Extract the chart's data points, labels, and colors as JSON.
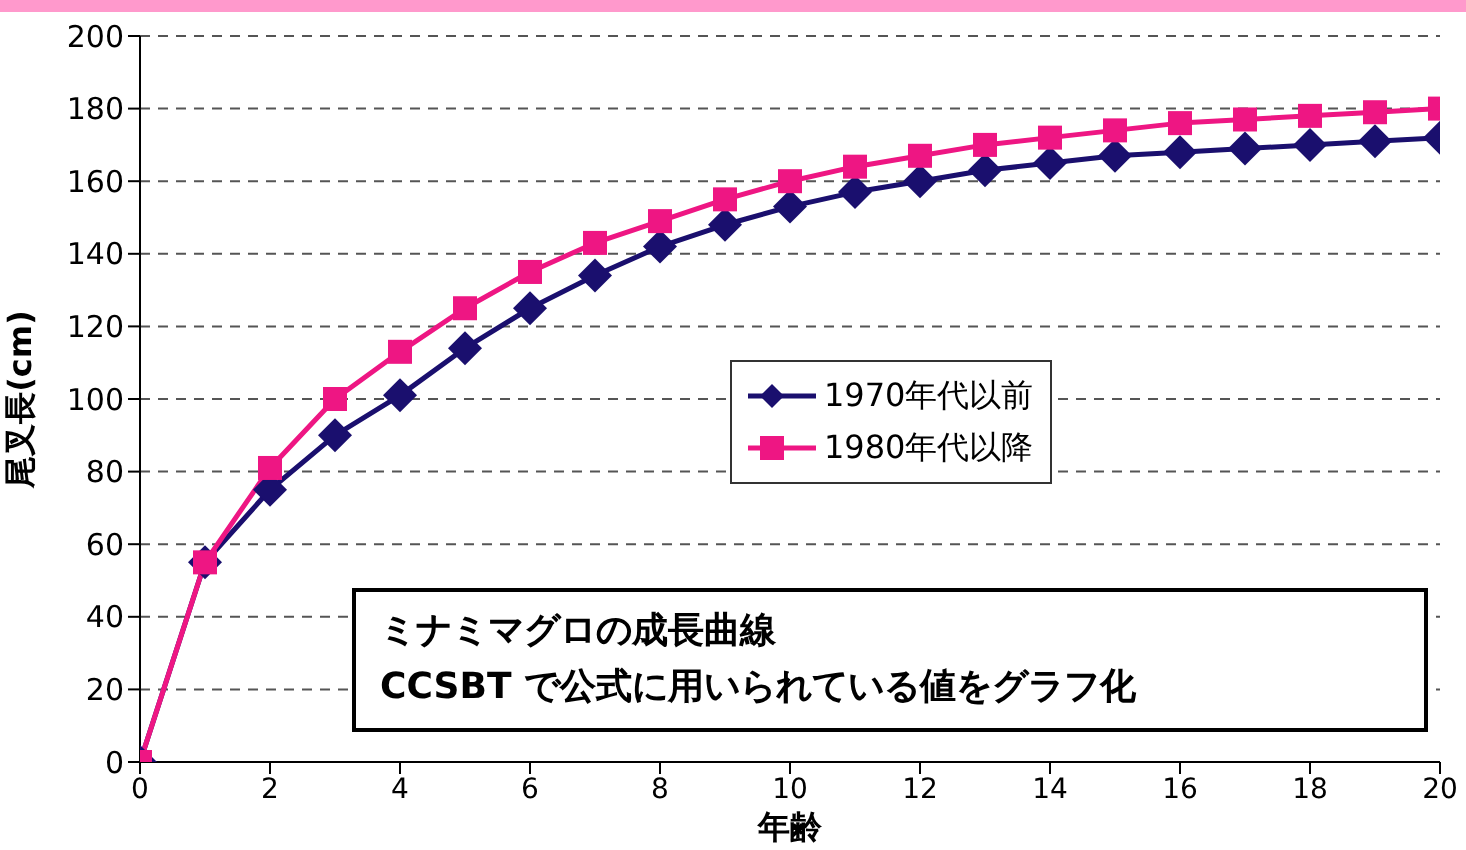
{
  "chart_data": {
    "type": "line",
    "xlabel": "年齢",
    "ylabel": "尾叉長(cm)",
    "x": [
      0,
      1,
      2,
      3,
      4,
      5,
      6,
      7,
      8,
      9,
      10,
      11,
      12,
      13,
      14,
      15,
      16,
      17,
      18,
      19,
      20
    ],
    "series": [
      {
        "name": "1970年代以前",
        "color": "#1a0f6e",
        "marker": "diamond",
        "values": [
          0,
          55,
          75,
          90,
          101,
          114,
          125,
          134,
          142,
          148,
          153,
          157,
          160,
          163,
          165,
          167,
          168,
          169,
          170,
          171,
          172
        ]
      },
      {
        "name": "1980年代以降",
        "color": "#ee1683",
        "marker": "square",
        "values": [
          0,
          55,
          81,
          100,
          113,
          125,
          135,
          143,
          149,
          155,
          160,
          164,
          167,
          170,
          172,
          174,
          176,
          177,
          178,
          179,
          180
        ]
      }
    ],
    "xlim": [
      0,
      20
    ],
    "xticks": [
      0,
      2,
      4,
      6,
      8,
      10,
      12,
      14,
      16,
      18,
      20
    ],
    "ylim": [
      0,
      200
    ],
    "yticks": [
      0,
      20,
      40,
      60,
      80,
      100,
      120,
      140,
      160,
      180,
      200
    ],
    "grid": "y",
    "legend": "right",
    "annotations": [
      "ミナミマグロの成長曲線",
      "CCSBT で公式に用いられている値をグラフ化"
    ]
  }
}
